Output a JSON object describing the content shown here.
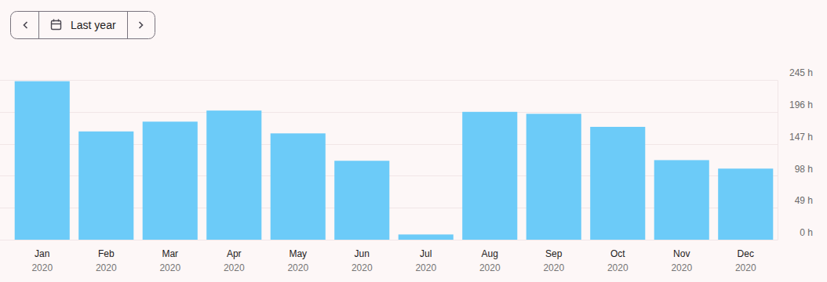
{
  "toolbar": {
    "label": "Last year"
  },
  "chart_data": {
    "type": "bar",
    "categories": [
      "Jan 2020",
      "Feb 2020",
      "Mar 2020",
      "Apr 2020",
      "May 2020",
      "Jun 2020",
      "Jul 2020",
      "Aug 2020",
      "Sep 2020",
      "Oct 2020",
      "Nov 2020",
      "Dec 2020"
    ],
    "values": [
      243,
      166,
      181,
      198,
      163,
      121,
      8,
      196,
      193,
      173,
      122,
      109
    ],
    "color": "#6ccbf8",
    "ylim": [
      0,
      245
    ],
    "yticks": [
      {
        "value": 0,
        "label": "0 h"
      },
      {
        "value": 49,
        "label": "49 h"
      },
      {
        "value": 98,
        "label": "98 h"
      },
      {
        "value": 147,
        "label": "147 h"
      },
      {
        "value": 196,
        "label": "196 h"
      },
      {
        "value": 245,
        "label": "245 h"
      }
    ],
    "grid": true
  }
}
